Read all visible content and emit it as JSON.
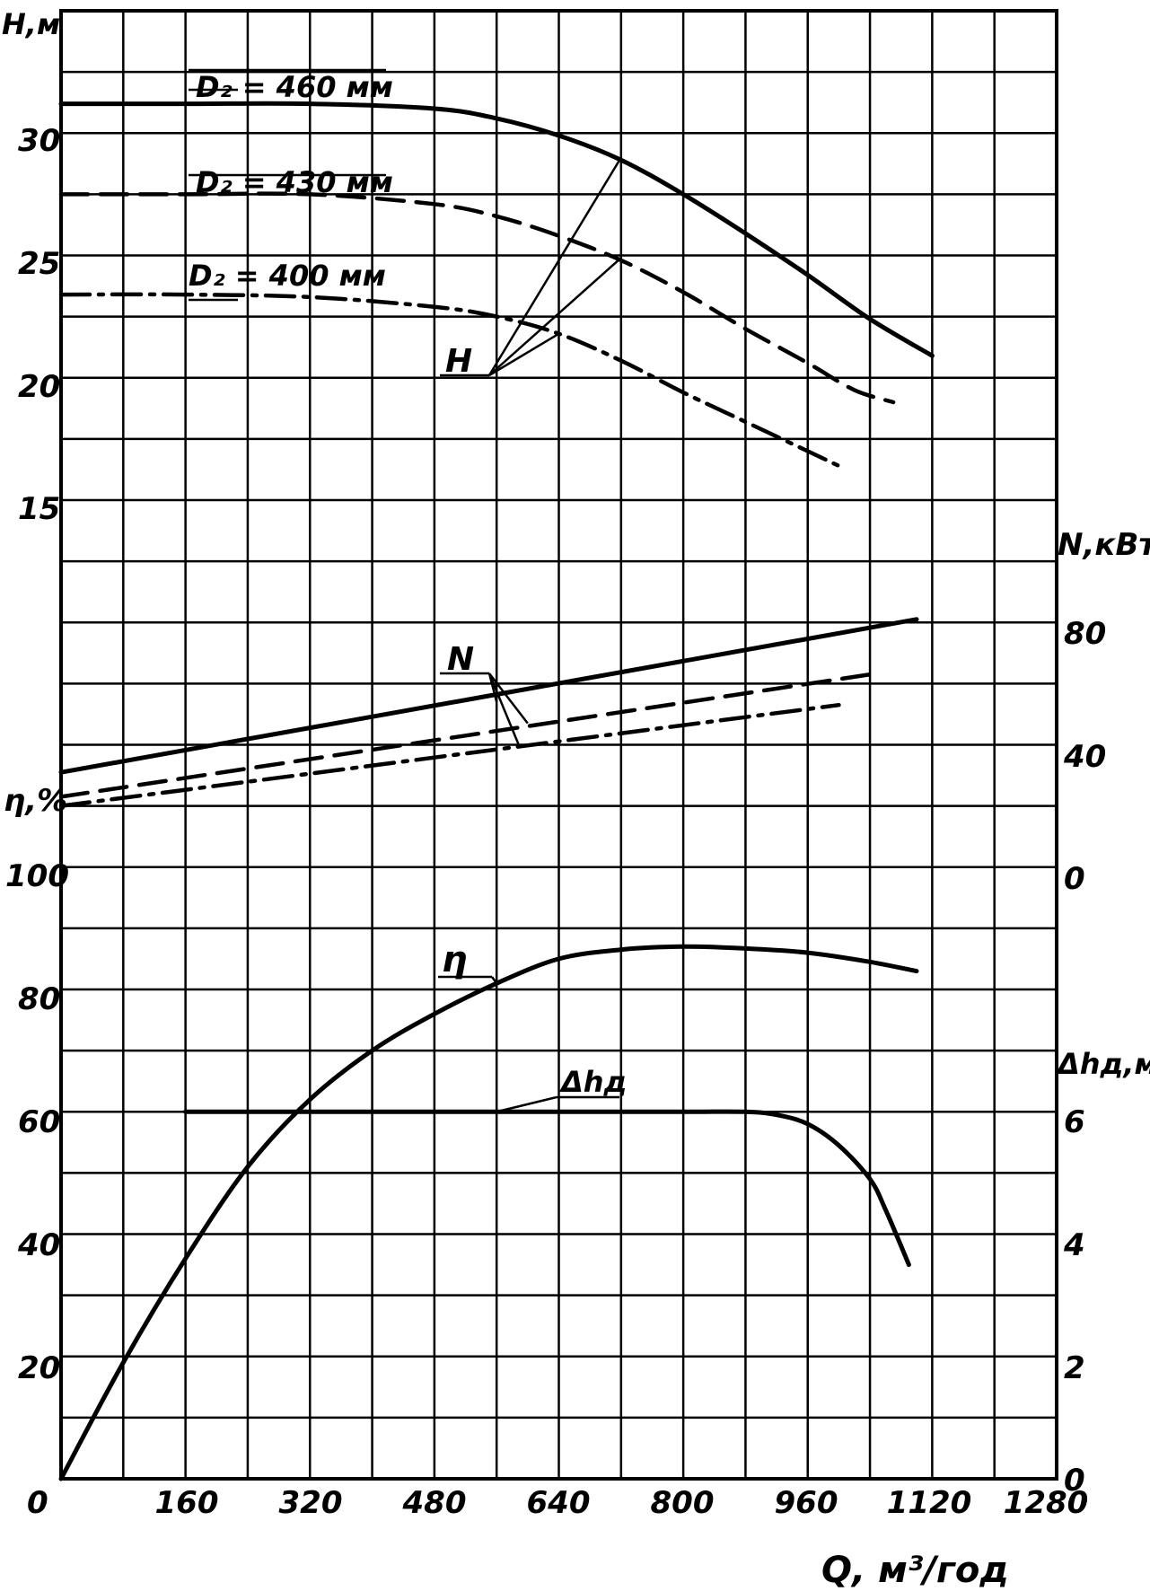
{
  "chart_data": {
    "type": "line",
    "xlabel": "Q, м³/год",
    "x_ticks": [
      "0",
      "160",
      "320",
      "480",
      "640",
      "800",
      "960",
      "1120",
      "1280"
    ],
    "xlim": [
      0,
      1280
    ],
    "axes": {
      "H": {
        "label": "Н,м",
        "ticks": [
          "15",
          "20",
          "25",
          "30"
        ],
        "side": "left"
      },
      "eta": {
        "label": "η,%",
        "ticks": [
          "0",
          "20",
          "40",
          "60",
          "80",
          "100"
        ],
        "side": "left"
      },
      "N": {
        "label": "N,кВт",
        "ticks": [
          "0",
          "40",
          "80"
        ],
        "side": "right"
      },
      "dh": {
        "label": "Δhд,м",
        "ticks": [
          "0",
          "2",
          "4",
          "6"
        ],
        "side": "right"
      }
    },
    "curve_labels": {
      "H": "Н",
      "N": "N",
      "eta": "η",
      "dh": "Δhд",
      "d460": "D₂ = 460 мм",
      "d430": "D₂ = 430 мм",
      "d400": "D₂ = 400 мм"
    },
    "series": [
      {
        "name": "D₂ = 460 мм",
        "quantity": "H",
        "style": "solid",
        "x": [
          0,
          160,
          320,
          480,
          560,
          640,
          720,
          800,
          880,
          960,
          1040,
          1120
        ],
        "y": [
          31.2,
          31.2,
          31.2,
          31.0,
          30.6,
          29.9,
          28.9,
          27.5,
          25.9,
          24.2,
          22.4,
          20.9
        ]
      },
      {
        "name": "D₂ = 430 мм",
        "quantity": "H",
        "style": "dashed",
        "x": [
          0,
          160,
          320,
          480,
          560,
          640,
          720,
          800,
          880,
          960,
          1020,
          1070
        ],
        "y": [
          27.5,
          27.5,
          27.5,
          27.1,
          26.6,
          25.8,
          24.8,
          23.5,
          22.0,
          20.6,
          19.5,
          19.0
        ]
      },
      {
        "name": "D₂ = 400 мм",
        "quantity": "H",
        "style": "dashdot",
        "x": [
          0,
          160,
          320,
          480,
          560,
          640,
          720,
          800,
          880,
          960,
          1000
        ],
        "y": [
          23.4,
          23.4,
          23.3,
          22.9,
          22.5,
          21.8,
          20.7,
          19.4,
          18.2,
          17.0,
          16.4
        ]
      },
      {
        "name": "D₂ = 460 мм",
        "quantity": "N",
        "style": "solid",
        "x": [
          0,
          1100
        ],
        "y": [
          31,
          81
        ]
      },
      {
        "name": "D₂ = 430 мм",
        "quantity": "N",
        "style": "dashed",
        "x": [
          0,
          1040
        ],
        "y": [
          23,
          63
        ]
      },
      {
        "name": "D₂ = 400 мм",
        "quantity": "N",
        "style": "dashdot",
        "x": [
          0,
          1000
        ],
        "y": [
          20,
          53
        ]
      },
      {
        "name": "η",
        "quantity": "eta",
        "style": "solid",
        "x": [
          0,
          80,
          160,
          240,
          320,
          400,
          480,
          560,
          640,
          720,
          800,
          880,
          960,
          1040,
          1100
        ],
        "y": [
          0,
          19,
          36,
          51,
          62,
          70,
          76,
          81,
          85,
          86.5,
          87,
          86.7,
          86,
          84.5,
          83
        ]
      },
      {
        "name": "Δhд",
        "quantity": "dh",
        "style": "solid",
        "x": [
          160,
          320,
          480,
          640,
          800,
          880,
          920,
          960,
          1000,
          1040,
          1060,
          1090
        ],
        "y": [
          6,
          6,
          6,
          6,
          6,
          6,
          5.95,
          5.8,
          5.45,
          4.9,
          4.4,
          3.5
        ]
      }
    ],
    "grid": true
  }
}
